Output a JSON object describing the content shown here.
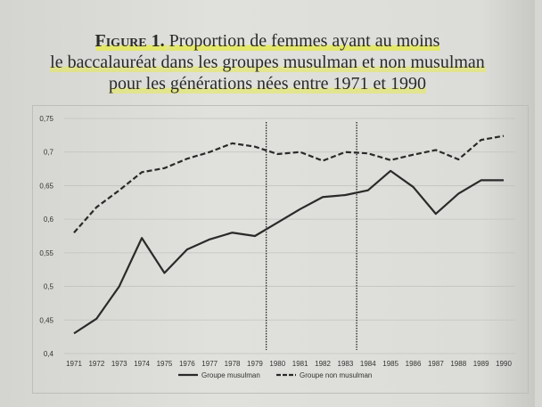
{
  "chart_data": {
    "type": "line",
    "title_prefix": "Figure 1.",
    "title_lines": [
      "Proportion de femmes ayant au moins",
      "le baccalauréat dans les groupes musulman et non musulman",
      "pour les générations nées entre 1971 et 1990"
    ],
    "xlabel": "",
    "ylabel": "",
    "x": [
      "1971",
      "1972",
      "1973",
      "1974",
      "1975",
      "1976",
      "1977",
      "1978",
      "1979",
      "1980",
      "1981",
      "1982",
      "1983",
      "1984",
      "1985",
      "1986",
      "1987",
      "1988",
      "1989",
      "1990"
    ],
    "y_ticks": [
      "0,4",
      "0,45",
      "0,5",
      "0,55",
      "0,6",
      "0,65",
      "0,7",
      "0,75"
    ],
    "ylim": [
      0.4,
      0.75
    ],
    "grid": true,
    "legend_position": "bottom",
    "vertical_markers": [
      "between 1979 and 1980",
      "between 1983 and 1984"
    ],
    "series": [
      {
        "name": "Groupe musulman",
        "style": "solid",
        "color": "#2a2a2a",
        "values": [
          0.43,
          0.452,
          0.5,
          0.572,
          0.52,
          0.555,
          0.57,
          0.58,
          0.575,
          0.595,
          0.615,
          0.633,
          0.636,
          0.643,
          0.672,
          0.648,
          0.608,
          0.638,
          0.658,
          0.658
        ]
      },
      {
        "name": "Groupe non musulman",
        "style": "dashed",
        "color": "#2a2a2a",
        "values": [
          0.58,
          0.618,
          0.643,
          0.67,
          0.676,
          0.69,
          0.7,
          0.713,
          0.708,
          0.697,
          0.7,
          0.687,
          0.7,
          0.698,
          0.688,
          0.696,
          0.703,
          0.689,
          0.718,
          0.724
        ]
      }
    ]
  }
}
